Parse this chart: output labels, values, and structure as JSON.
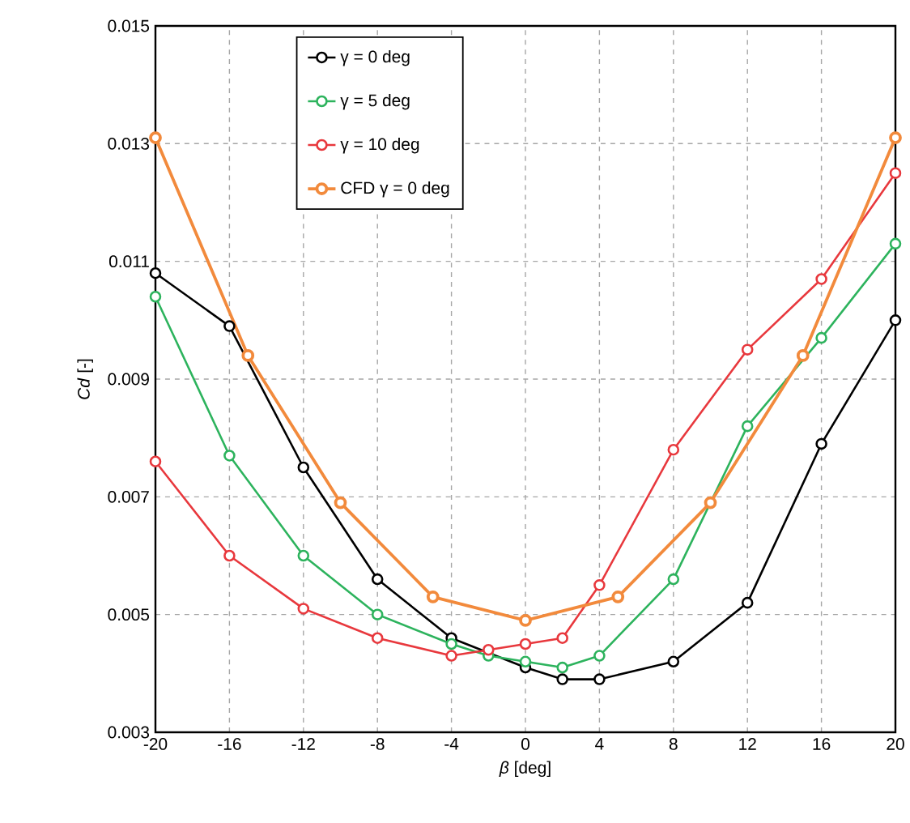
{
  "chart_data": {
    "type": "line",
    "xlabel": "*β* [deg]",
    "ylabel": "*Cd* [-]",
    "xlim": [
      -20,
      20
    ],
    "xticks": [
      -20,
      -16,
      -12,
      -8,
      -4,
      0,
      4,
      8,
      12,
      16,
      20
    ],
    "ylim": [
      0.003,
      0.015
    ],
    "yticks": [
      0.003,
      0.005,
      0.007,
      0.009,
      0.011,
      0.013,
      0.015
    ],
    "grid": true,
    "legend": "top left",
    "marker": "circle",
    "line_style": "solid",
    "series": [
      {
        "name": "γ = 0 deg",
        "color": "#000000",
        "x": [
          -20,
          -16,
          -12,
          -8,
          -4,
          0,
          2,
          4,
          8,
          12,
          16,
          20
        ],
        "values": [
          0.0108,
          0.0099,
          0.0075,
          0.0056,
          0.0046,
          0.0041,
          0.0039,
          0.0039,
          0.0042,
          0.0052,
          0.0079,
          0.01
        ]
      },
      {
        "name": "γ = 5 deg",
        "color": "#2db35d",
        "x": [
          -20,
          -16,
          -12,
          -8,
          -4,
          -2,
          0,
          2,
          4,
          8,
          12,
          16,
          20
        ],
        "values": [
          0.0104,
          0.0077,
          0.006,
          0.005,
          0.0045,
          0.0043,
          0.0042,
          0.0041,
          0.0043,
          0.0056,
          0.0082,
          0.0097,
          0.0113
        ]
      },
      {
        "name": "γ = 10 deg",
        "color": "#e8383d",
        "x": [
          -20,
          -16,
          -12,
          -8,
          -4,
          -2,
          0,
          2,
          4,
          8,
          12,
          16,
          20
        ],
        "values": [
          0.0076,
          0.006,
          0.0051,
          0.0046,
          0.0043,
          0.0044,
          0.0045,
          0.0046,
          0.0055,
          0.0078,
          0.0095,
          0.0107,
          0.0125
        ]
      },
      {
        "name": "CFD γ = 0 deg",
        "color": "#f28a3c",
        "x": [
          -20,
          -15,
          -10,
          -5,
          0,
          5,
          10,
          15,
          20
        ],
        "values": [
          0.0131,
          0.0094,
          0.0069,
          0.0053,
          0.0049,
          0.0053,
          0.0069,
          0.0094,
          0.0131
        ]
      }
    ]
  }
}
